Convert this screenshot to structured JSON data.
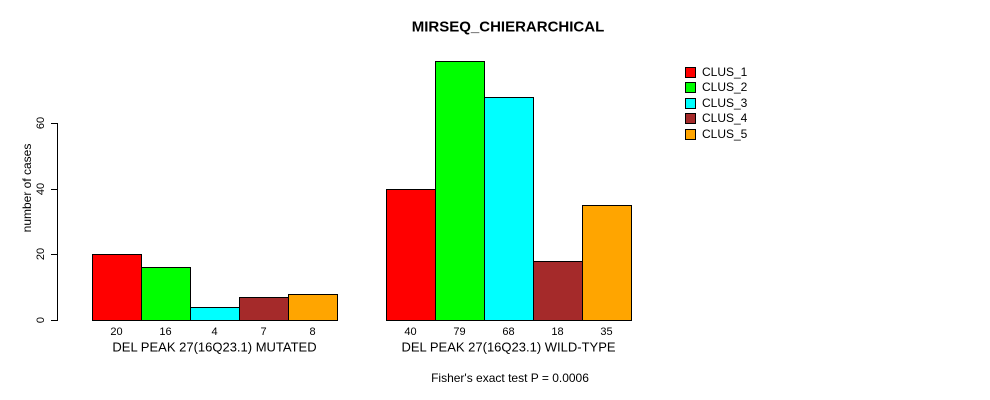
{
  "title": "MIRSEQ_CHIERARCHICAL",
  "y_axis": {
    "label": "number of cases",
    "ticks": [
      0,
      20,
      40,
      60
    ]
  },
  "footnote": "Fisher's exact test P = 0.0006",
  "legend": {
    "items": [
      {
        "label": "CLUS_1",
        "color": "#FF0000"
      },
      {
        "label": "CLUS_2",
        "color": "#00FF00"
      },
      {
        "label": "CLUS_3",
        "color": "#00FFFF"
      },
      {
        "label": "CLUS_4",
        "color": "#A52A2A"
      },
      {
        "label": "CLUS_5",
        "color": "#FFA500"
      }
    ]
  },
  "chart_data": {
    "type": "bar",
    "series_names": [
      "CLUS_1",
      "CLUS_2",
      "CLUS_3",
      "CLUS_4",
      "CLUS_5"
    ],
    "colors": [
      "#FF0000",
      "#00FF00",
      "#00FFFF",
      "#A52A2A",
      "#FFA500"
    ],
    "groups": [
      {
        "label": "DEL PEAK 27(16Q23.1) MUTATED",
        "values": [
          20,
          16,
          4,
          7,
          8
        ]
      },
      {
        "label": "DEL PEAK 27(16Q23.1) WILD-TYPE",
        "values": [
          40,
          79,
          68,
          18,
          35
        ]
      }
    ],
    "title": "MIRSEQ_CHIERARCHICAL",
    "xlabel": "",
    "ylabel": "number of cases",
    "ylim": [
      0,
      80
    ],
    "grid": false,
    "legend_position": "top-right",
    "bar_border_color": "#000000",
    "background": "#FFFFFF"
  }
}
